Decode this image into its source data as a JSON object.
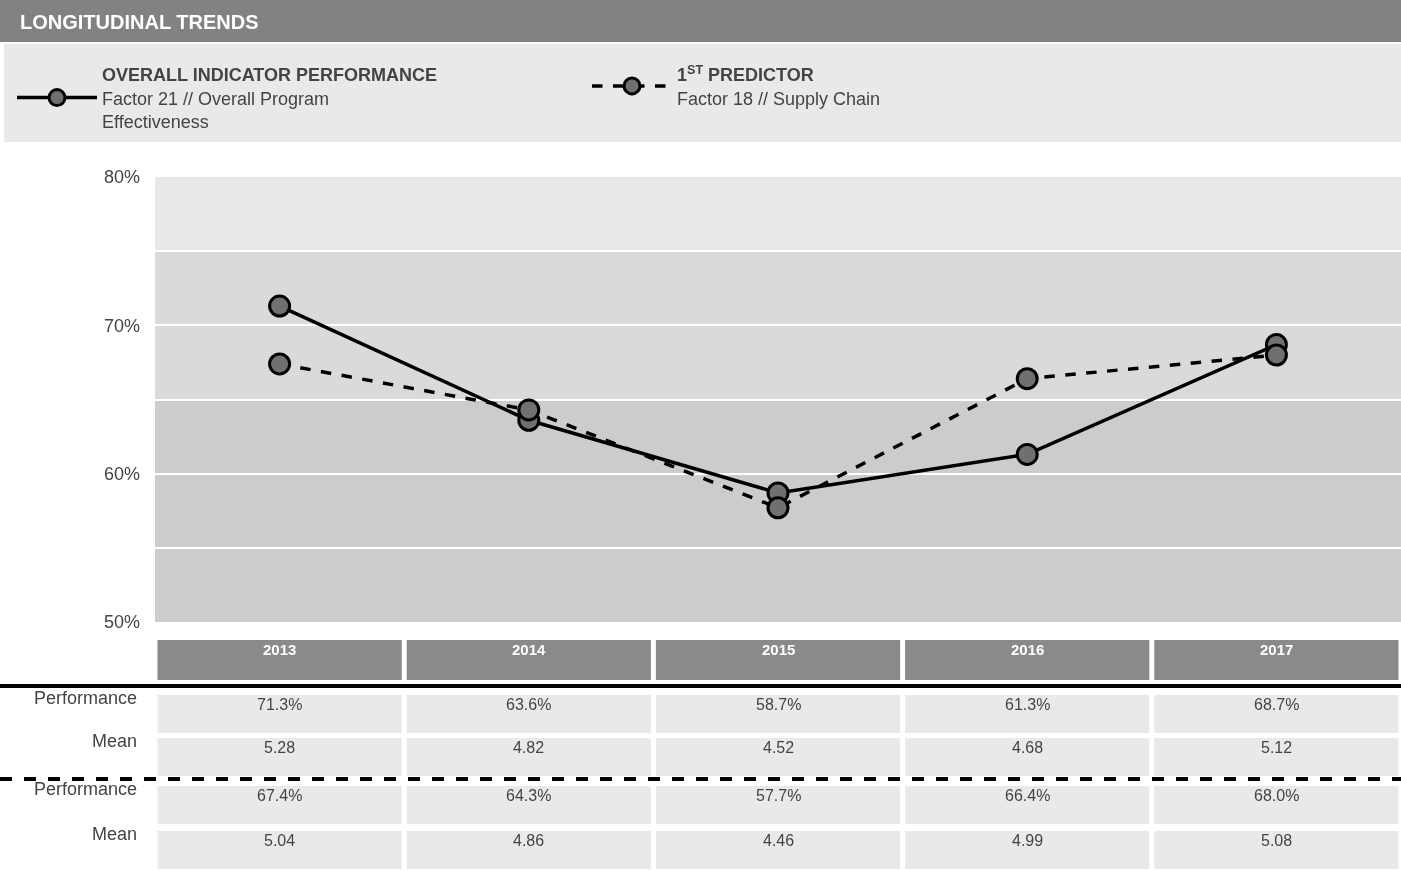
{
  "chart_data": {
    "type": "line",
    "title": "LONGITUDINAL TRENDS",
    "categories": [
      "2013",
      "2014",
      "2015",
      "2016",
      "2017"
    ],
    "series": [
      {
        "name": "OVERALL INDICATOR PERFORMANCE\nFactor 21 // Overall Program Effectiveness",
        "color": "#000000",
        "values": [
          71.3,
          63.6,
          58.7,
          61.3,
          68.7
        ],
        "value_labels": [
          "71.3%",
          "63.6%",
          "58.7%",
          "61.3%",
          "68.7%"
        ],
        "line_style": "solid"
      },
      {
        "name": "1$^{ST}$ PREDICTOR\nFactor 18 // Supply Chain",
        "color": "#000000",
        "values": [
          67.4,
          64.3,
          57.7,
          66.4,
          68.0
        ],
        "value_labels": [
          "67.4%",
          "64.3%",
          "57.7%",
          "66.4%",
          "68.0%"
        ],
        "line_style": "dashed"
      }
    ],
    "ylim": [
      50,
      80
    ],
    "yticks": [
      {
        "value": 50,
        "label": "50%"
      },
      {
        "value": 55,
        "label": null
      },
      {
        "value": 60,
        "label": "60%"
      },
      {
        "value": 65,
        "label": null
      },
      {
        "value": 70,
        "label": "70%"
      },
      {
        "value": 75,
        "label": null
      },
      {
        "value": 80,
        "label": "80%"
      }
    ],
    "grid": "y",
    "marker": "circle",
    "legend": "top",
    "bands": [
      {
        "axis": "y",
        "from": 50,
        "to": 65,
        "color": "#cbcccd"
      },
      {
        "axis": "y",
        "from": 65,
        "to": 75,
        "color": "#d9dadb"
      },
      {
        "axis": "y",
        "from": 75,
        "to": 80,
        "color": "#e8e8e8"
      }
    ],
    "annotations": [
      "Performance",
      "Mean",
      "5.28",
      "4.82",
      "4.52",
      "4.68",
      "5.12",
      "Performance",
      "Mean",
      "5.04",
      "4.86",
      "4.46",
      "4.99",
      "5.08"
    ]
  }
}
